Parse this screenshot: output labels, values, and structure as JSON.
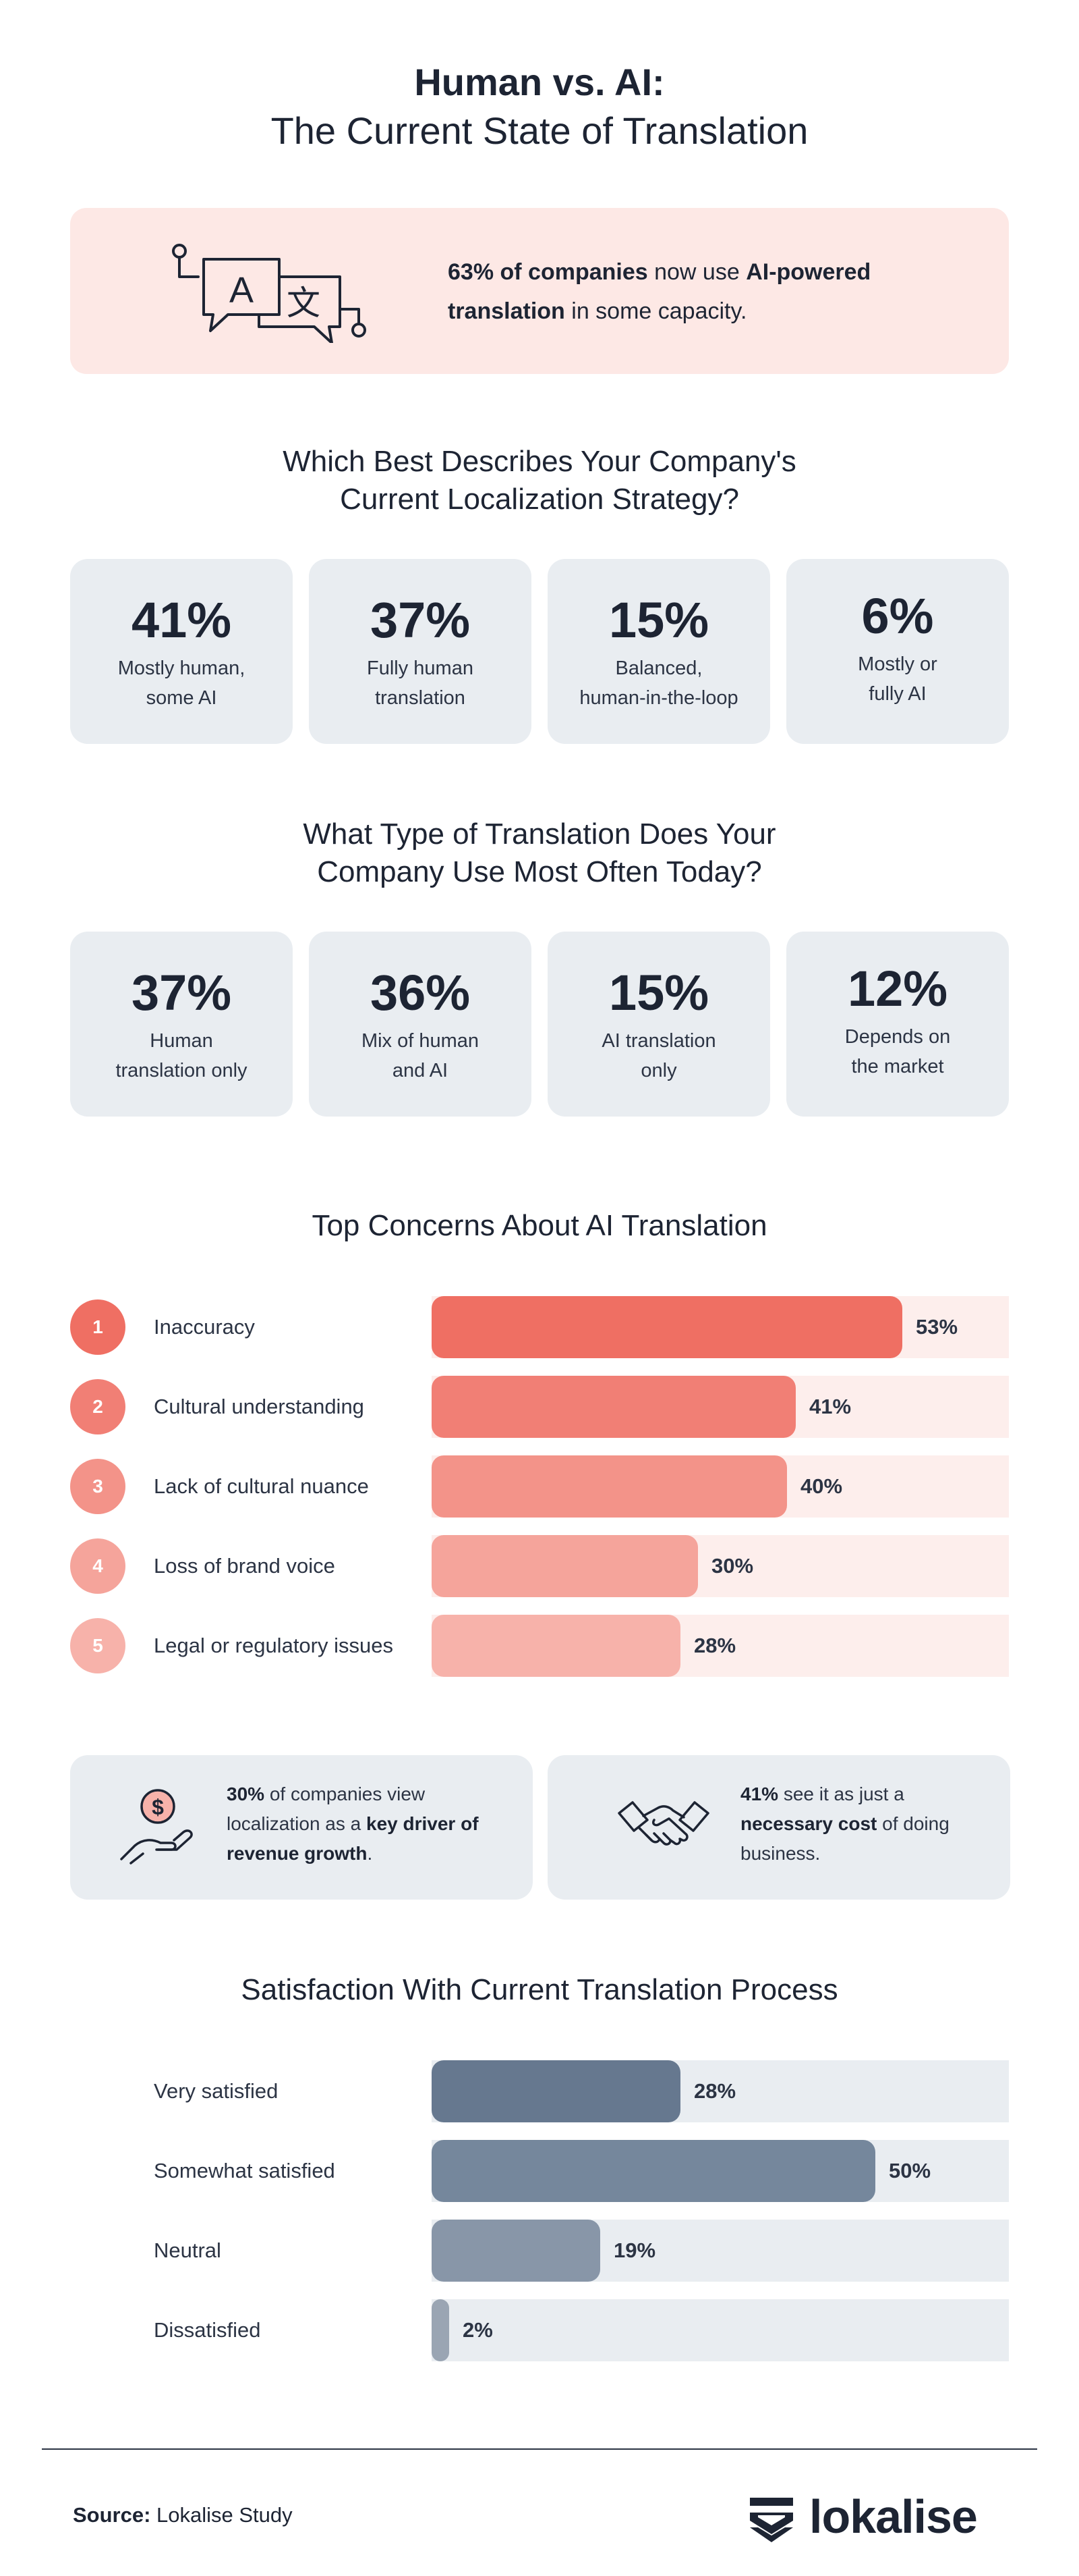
{
  "title": {
    "line1": "Human vs. AI:",
    "line2": "The Current State of Translation"
  },
  "callout": {
    "text_bold_1": "63% of companies",
    "text_plain_1": " now use ",
    "text_bold_2": "AI-powered translation",
    "text_plain_2": " in some capacity.",
    "icon": "translation-chat-icon"
  },
  "strategy": {
    "heading_line1": "Which Best Describes Your Company's",
    "heading_line2": "Current Localization Strategy?",
    "cards": [
      {
        "pct": "41%",
        "label_line1": "Mostly human,",
        "label_line2": "some AI"
      },
      {
        "pct": "37%",
        "label_line1": "Fully human",
        "label_line2": "translation"
      },
      {
        "pct": "15%",
        "label_line1": "Balanced,",
        "label_line2": "human-in-the-loop"
      },
      {
        "pct": "6%",
        "label_line1": "Mostly or",
        "label_line2": "fully AI"
      }
    ]
  },
  "translation_type": {
    "heading_line1": "What Type of Translation Does Your",
    "heading_line2": "Company Use Most Often Today?",
    "cards": [
      {
        "pct": "37%",
        "label_line1": "Human",
        "label_line2": "translation only"
      },
      {
        "pct": "36%",
        "label_line1": "Mix of human",
        "label_line2": "and AI"
      },
      {
        "pct": "15%",
        "label_line1": "AI translation",
        "label_line2": "only"
      },
      {
        "pct": "12%",
        "label_line1": "Depends on",
        "label_line2": "the market"
      }
    ]
  },
  "concerns": {
    "heading": "Top Concerns About AI Translation",
    "colors": [
      "#ef6f63",
      "#f17f75",
      "#f39389",
      "#f5a49b",
      "#f7b2aa"
    ],
    "track_color": "#fdeeec"
  },
  "info": {
    "left": {
      "bold_1": "30%",
      "plain_1": " of companies view localization as a ",
      "bold_2": "key driver of revenue growth",
      "plain_2": ".",
      "icon": "hand-dollar-icon"
    },
    "right": {
      "bold_1": "41%",
      "plain_1": " see it as just a ",
      "bold_2": "necessary cost",
      "plain_2": " of doing business.",
      "icon": "handshake-icon"
    }
  },
  "satisfaction": {
    "heading": "Satisfaction With Current Translation Process",
    "colors": [
      "#66788f",
      "#75879c",
      "#8896a8",
      "#9aa5b3"
    ],
    "track_color": "#e9edf1"
  },
  "source": {
    "label": "Source:",
    "value": " Lokalise Study"
  },
  "logo": {
    "text": "lokalise",
    "icon": "lokalise-logo-icon"
  },
  "chart_data": [
    {
      "type": "bar",
      "orientation": "horizontal",
      "title": "Top Concerns About AI Translation",
      "categories": [
        "Inaccuracy",
        "Cultural understanding",
        "Lack of cultural nuance",
        "Loss of brand voice",
        "Legal or regulatory issues"
      ],
      "ranks": [
        "1",
        "2",
        "3",
        "4",
        "5"
      ],
      "values": [
        53,
        41,
        40,
        30,
        28
      ],
      "value_labels": [
        "53%",
        "41%",
        "40%",
        "30%",
        "28%"
      ],
      "xlim": [
        0,
        65
      ]
    },
    {
      "type": "bar",
      "orientation": "horizontal",
      "title": "Satisfaction With Current Translation Process",
      "categories": [
        "Very satisfied",
        "Somewhat satisfied",
        "Neutral",
        "Dissatisfied"
      ],
      "values": [
        28,
        50,
        19,
        2
      ],
      "value_labels": [
        "28%",
        "50%",
        "19%",
        "2%"
      ],
      "xlim": [
        0,
        65
      ]
    }
  ]
}
